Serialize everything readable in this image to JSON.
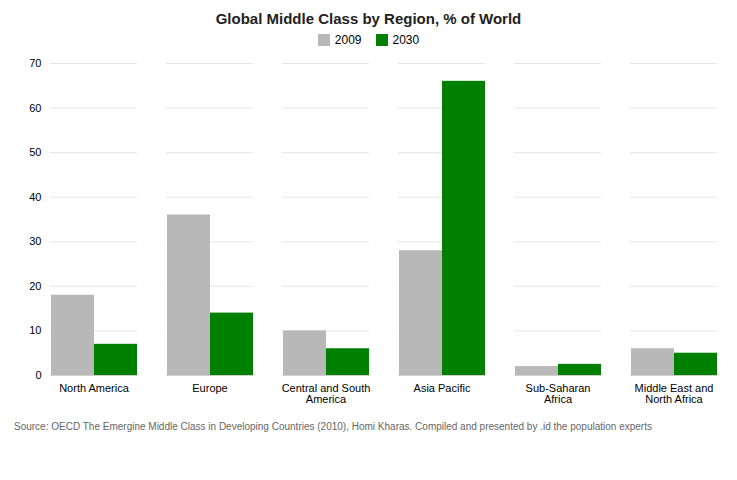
{
  "chart_data": {
    "type": "bar",
    "title": "Global Middle Class by Region, % of World",
    "categories": [
      "North America",
      "Europe",
      "Central and South\nAmerica",
      "Asia Pacific",
      "Sub-Saharan\nAfrica",
      "Middle East and\nNorth Africa"
    ],
    "series": [
      {
        "name": "2009",
        "color": "#b8b8b8",
        "values": [
          18,
          36,
          10,
          28,
          2,
          6
        ]
      },
      {
        "name": "2030",
        "color": "#008000",
        "values": [
          7,
          14,
          6,
          66,
          2.5,
          5
        ]
      }
    ],
    "ylim": [
      0,
      70
    ],
    "yticks": [
      0,
      10,
      20,
      30,
      40,
      50,
      60,
      70
    ],
    "grid": true,
    "legend": "top",
    "caption": "Source: OECD The Emergine Middle Class in Developing Countries (2010), Homi Kharas. Compiled and presented by .id the population experts"
  }
}
